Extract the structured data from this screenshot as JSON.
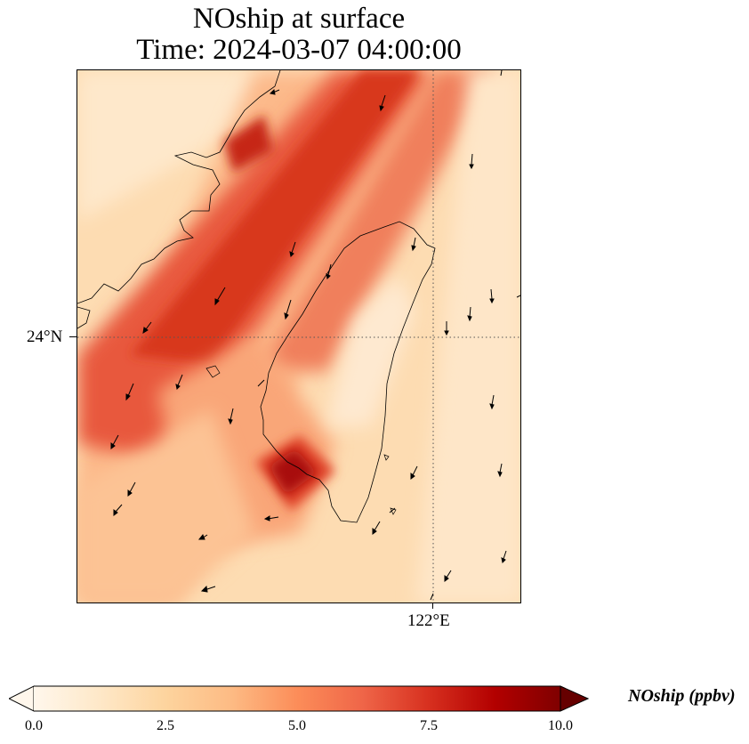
{
  "title": {
    "line1": "NOship at surface",
    "line2": "Time: 2024-03-07 04:00:00"
  },
  "map": {
    "lat_label": "24°N",
    "lon_label": "122°E",
    "gridlines": "dotted",
    "coastline_color": "#000000"
  },
  "colorbar": {
    "label": "NOship (ppbv)",
    "colormap": "OrRd",
    "min": 0.0,
    "max": 10.0,
    "extend": "both",
    "ticks": [
      "0.0",
      "2.5",
      "5.0",
      "7.5",
      "10.0"
    ],
    "tick_values": [
      0.0,
      2.5,
      5.0,
      7.5,
      10.0
    ],
    "colors": [
      "#fff7ec",
      "#fee8c8",
      "#fdd49e",
      "#fdbb84",
      "#fc8d59",
      "#ef6548",
      "#d7301f",
      "#b30000",
      "#7f0000"
    ]
  }
}
